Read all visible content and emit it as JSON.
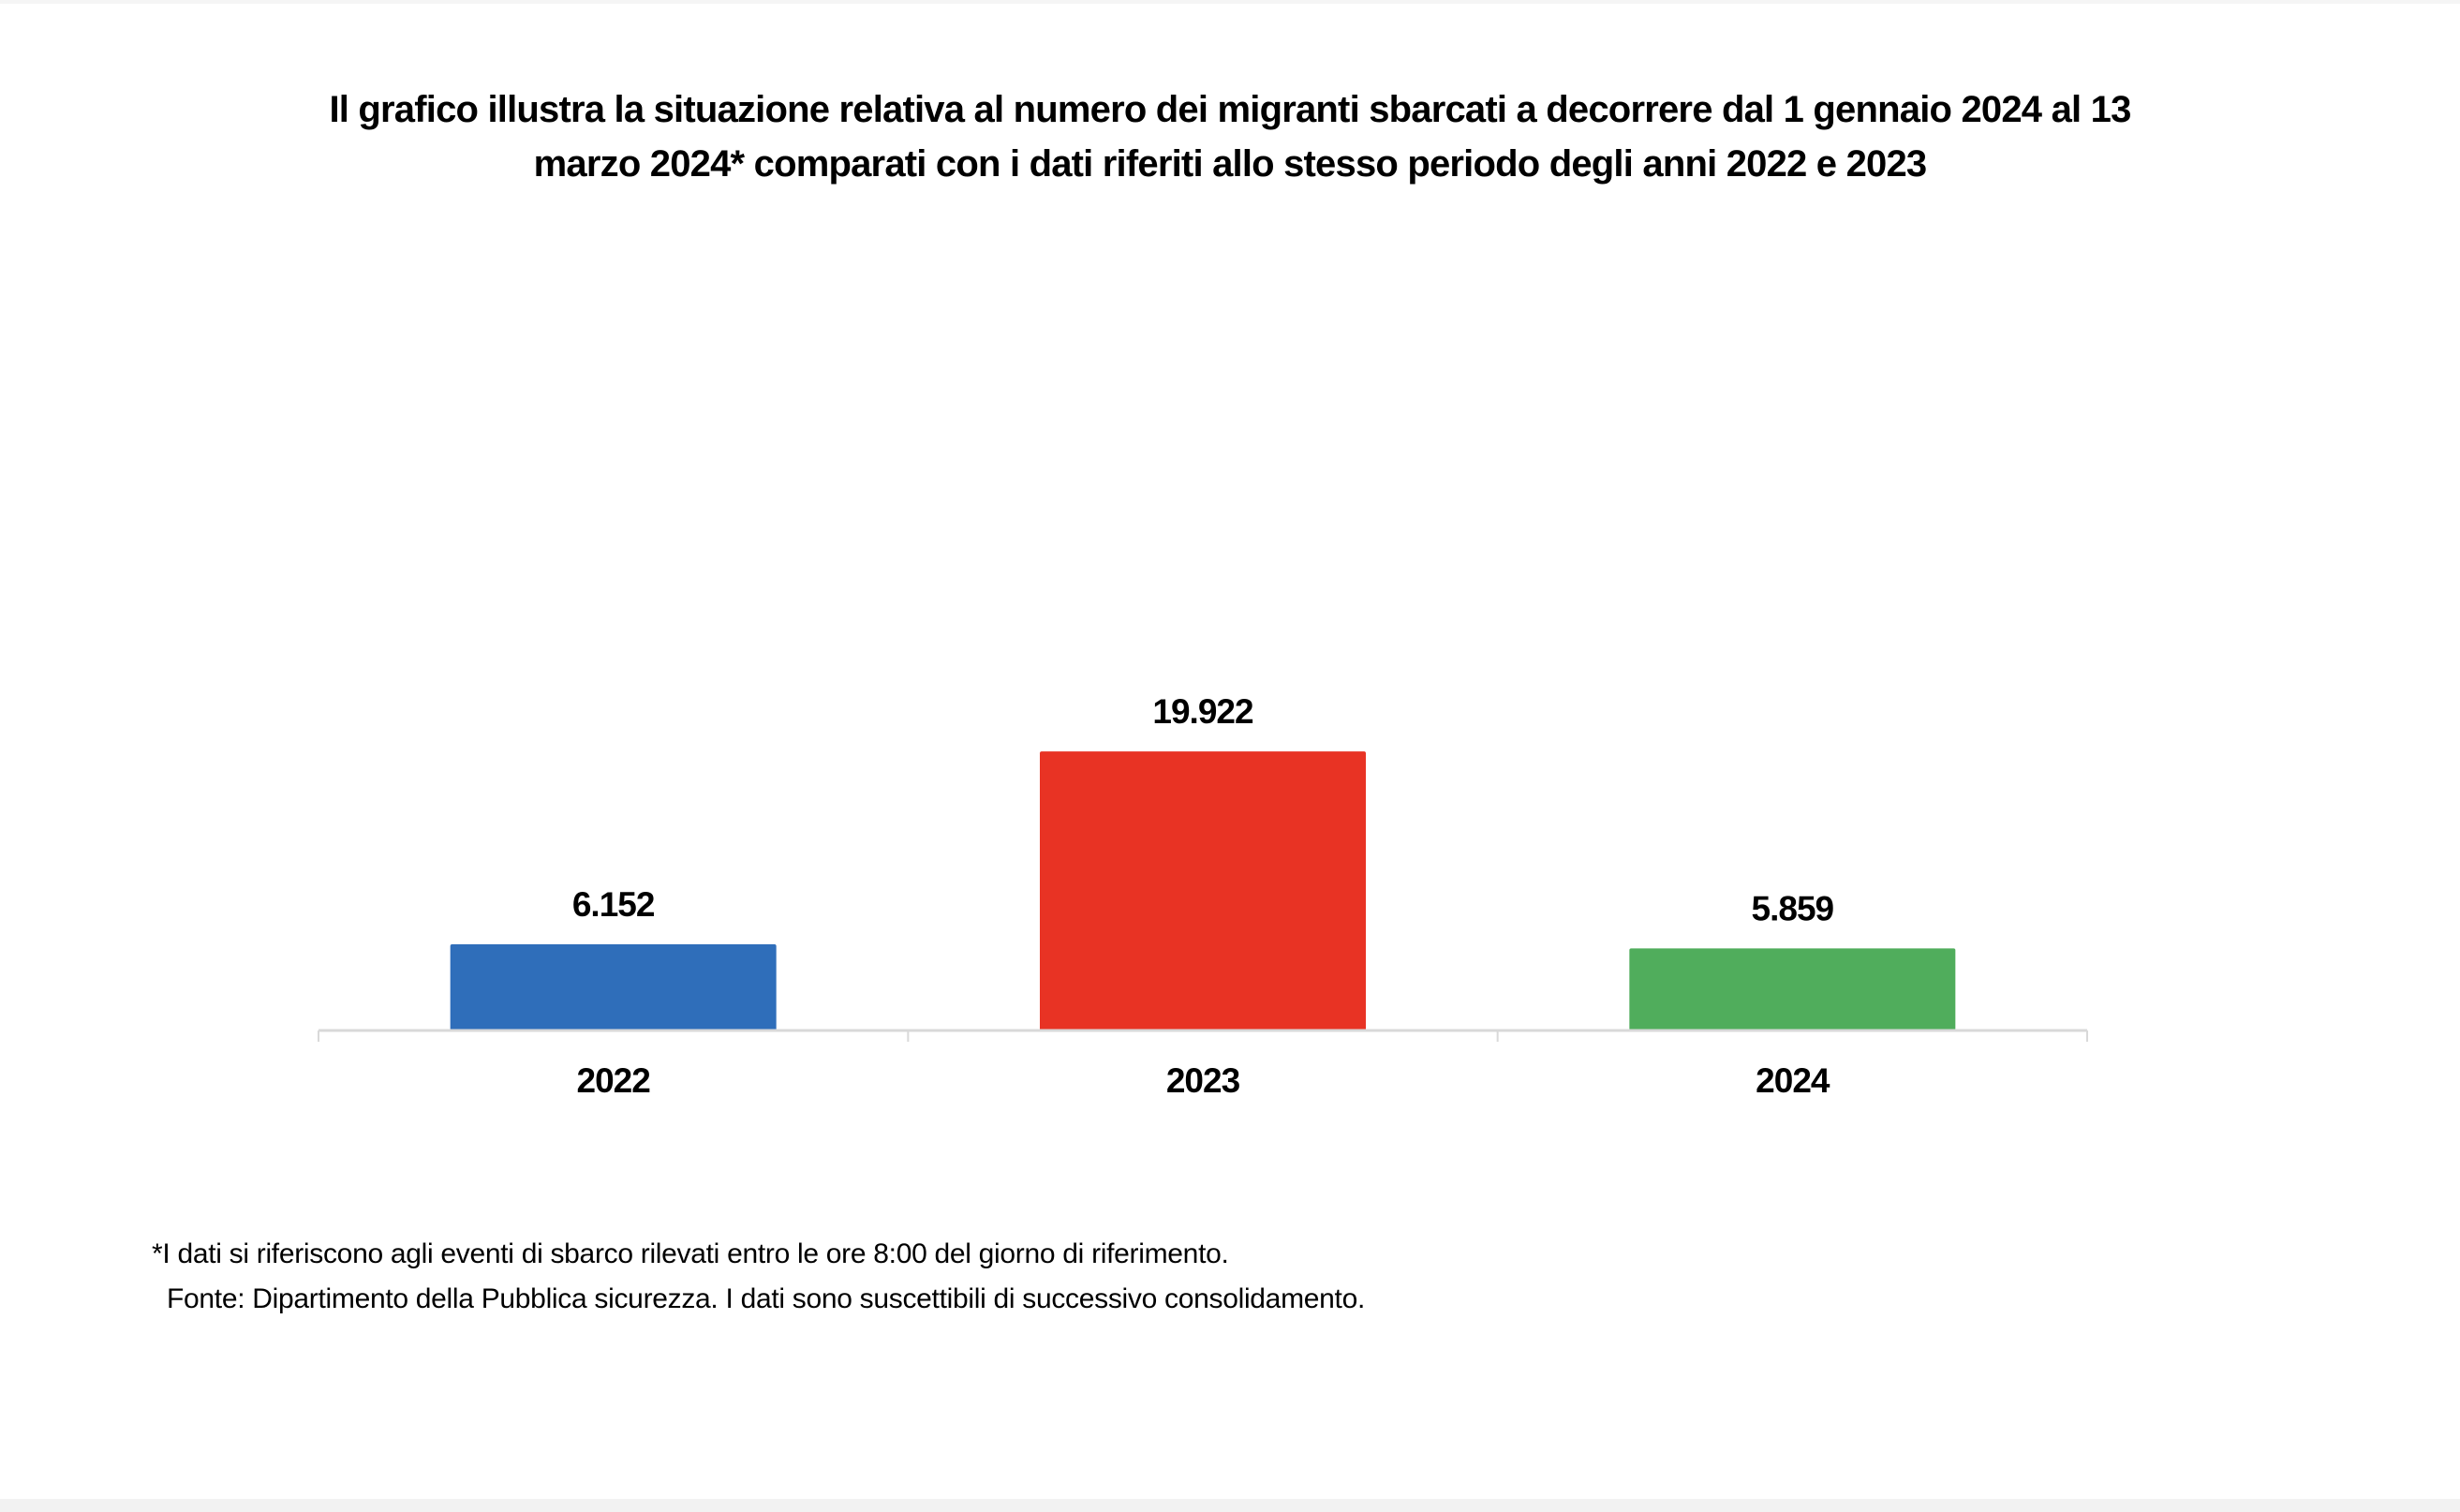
{
  "chart_data": {
    "type": "bar",
    "title": "Il grafico illustra la situazione relativa al numero dei migranti sbarcati a decorrere dal 1 gennaio 2024 al 13 marzo 2024* comparati con i dati riferiti allo stesso periodo degli anni 2022 e 2023",
    "categories": [
      "2022",
      "2023",
      "2024"
    ],
    "values": [
      6152,
      19922,
      5859
    ],
    "data_labels": [
      "6.152",
      "19.922",
      "5.859"
    ],
    "colors": [
      "#2F6EBA",
      "#E83324",
      "#50AD5C"
    ],
    "xlabel": "",
    "ylabel": "",
    "ylim": [
      0,
      60000
    ],
    "grid": false,
    "y_axis_visible": false,
    "legend": "none"
  },
  "footnotes": {
    "note": "*I dati si riferiscono agli eventi di sbarco rilevati entro le ore 8:00 del giorno di riferimento.",
    "source": "Fonte: Dipartimento della Pubblica sicurezza. I dati sono suscettibili di successivo consolidamento."
  }
}
